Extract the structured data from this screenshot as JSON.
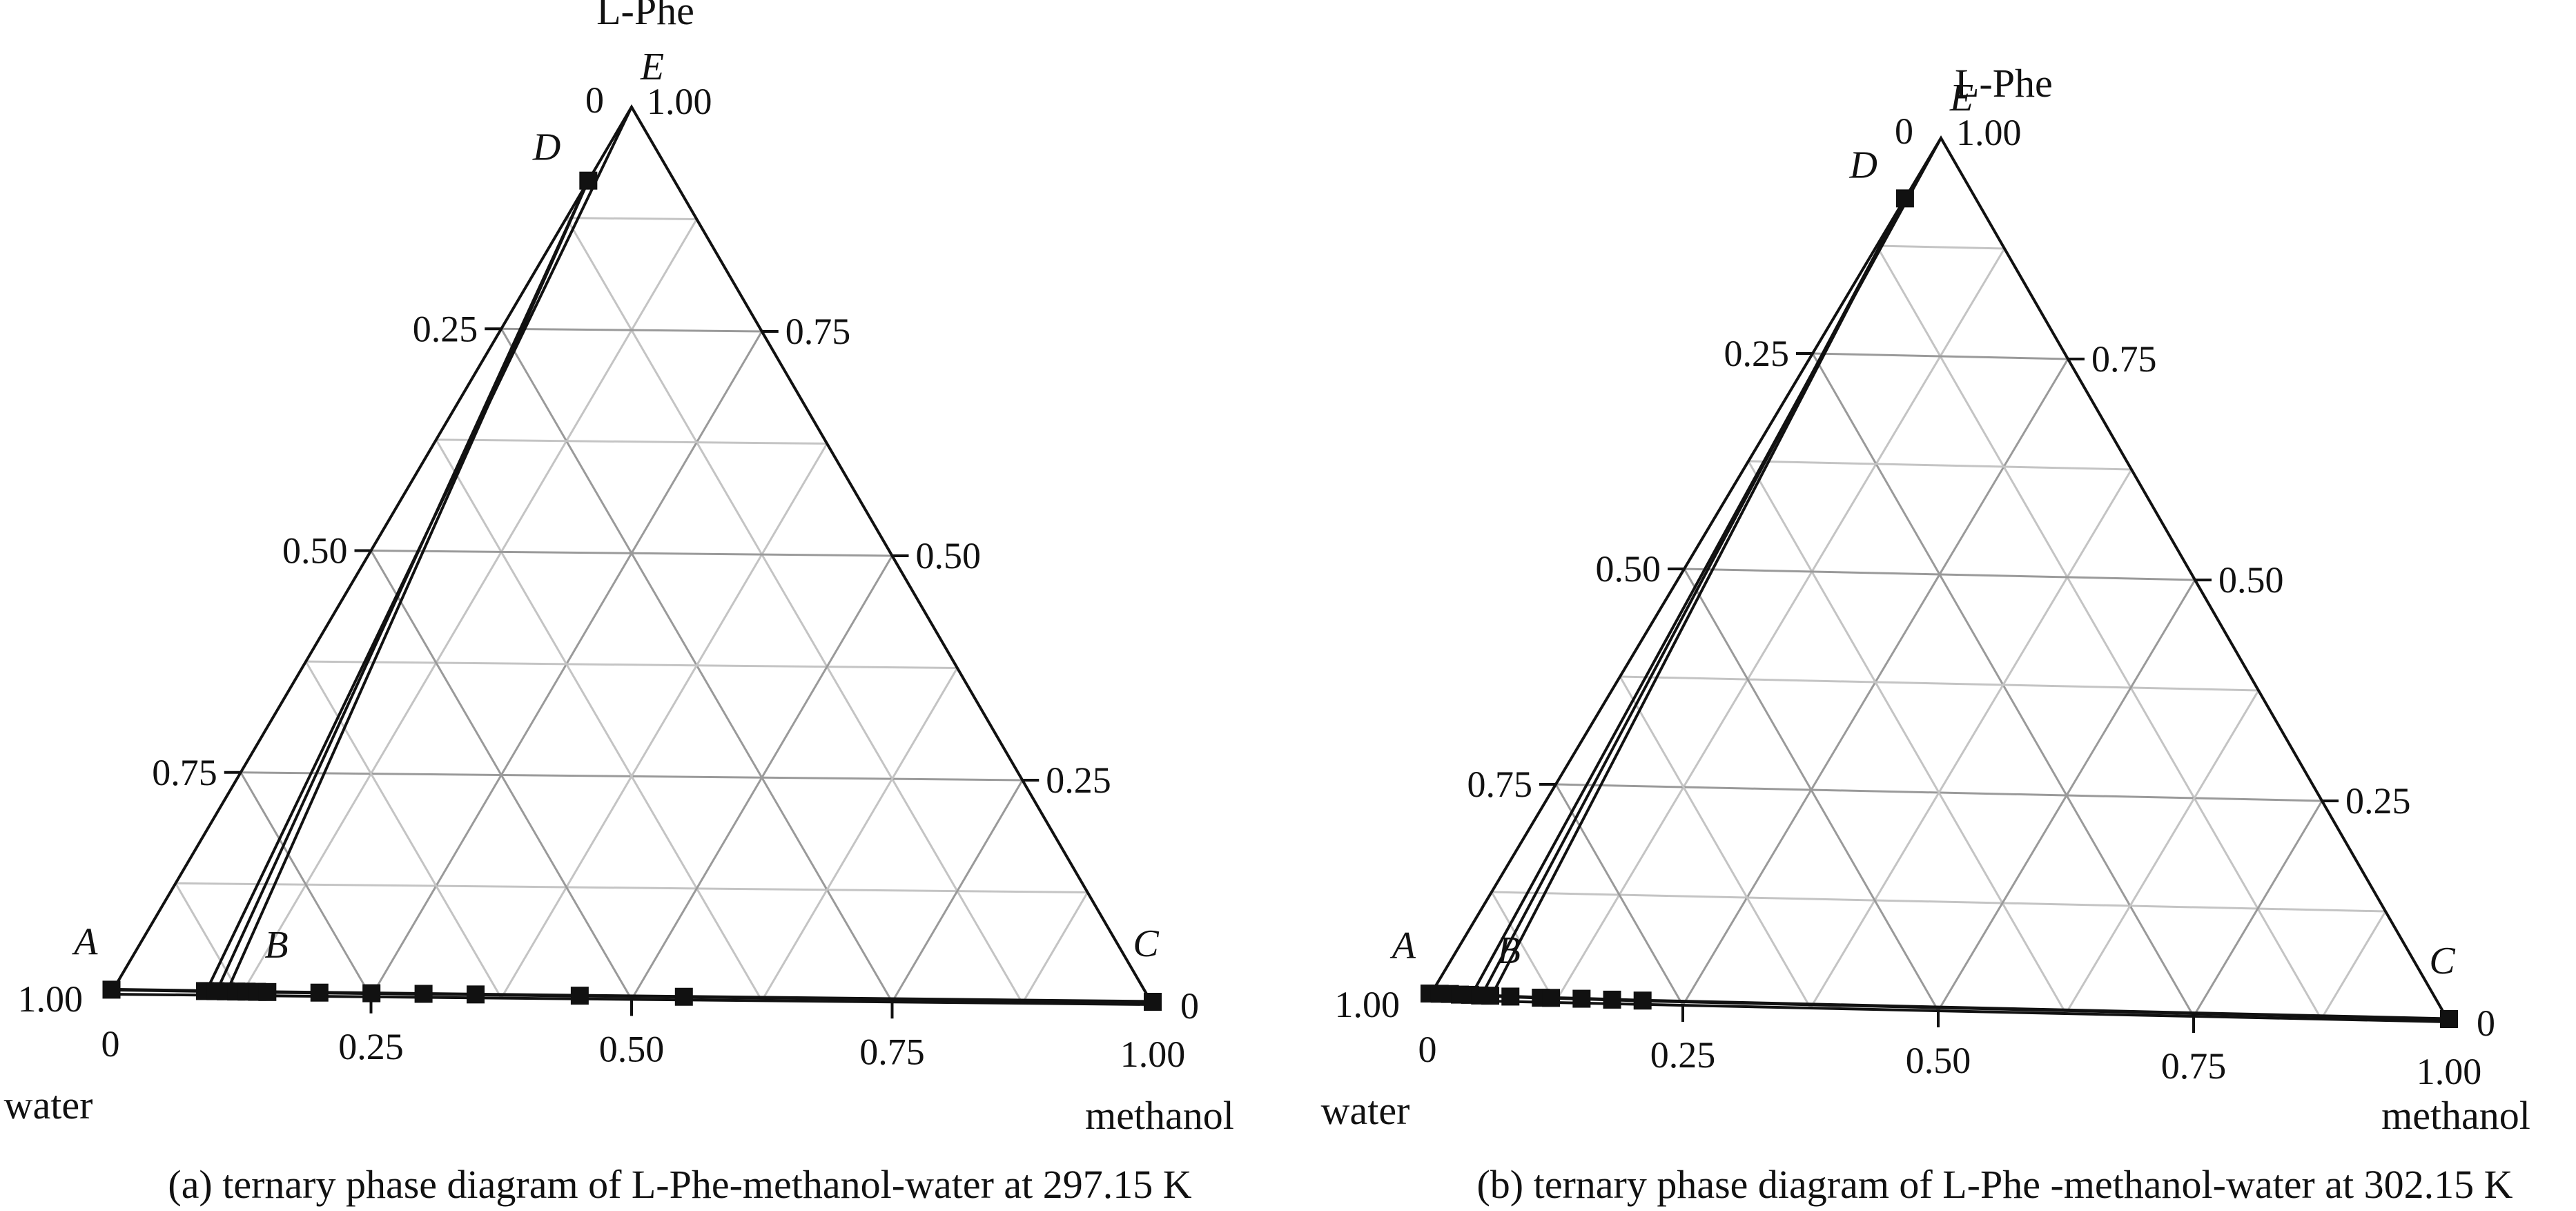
{
  "chart_data": [
    {
      "type": "ternary",
      "caption": "(a) ternary phase diagram of L-Phe-methanol-water at 297.15 K",
      "vertices": {
        "top": "L-Phe",
        "left": "water",
        "right": "methanol"
      },
      "grid": true,
      "ticks": {
        "left_edge": [
          "0",
          "0.25",
          "0.50",
          "0.75",
          "1.00"
        ],
        "right_edge": [
          "1.00",
          "0.75",
          "0.50",
          "0.25",
          "0"
        ],
        "bottom_edge": [
          "0",
          "0.25",
          "0.50",
          "0.75",
          "1.00"
        ]
      },
      "point_labels": [
        {
          "label": "E",
          "a": 1.0,
          "b": 0.0
        },
        {
          "label": "D",
          "a": 0.917,
          "b": 0.0
        },
        {
          "label": "A",
          "a": 0.002,
          "b": 0.0
        },
        {
          "label": "B",
          "a": 0.0,
          "b": 0.14
        },
        {
          "label": "C",
          "a": 0.0,
          "b": 1.0
        }
      ],
      "solubility_curve": [
        {
          "a": 0.002,
          "b": 0.0
        },
        {
          "a": 0.0015,
          "b": 0.09
        },
        {
          "a": 0.0015,
          "b": 0.1
        },
        {
          "a": 0.0014,
          "b": 0.11
        },
        {
          "a": 0.0013,
          "b": 0.12
        },
        {
          "a": 0.0013,
          "b": 0.13
        },
        {
          "a": 0.0012,
          "b": 0.14
        },
        {
          "a": 0.0011,
          "b": 0.15
        },
        {
          "a": 0.001,
          "b": 0.2
        },
        {
          "a": 0.0009,
          "b": 0.25
        },
        {
          "a": 0.0008,
          "b": 0.3
        },
        {
          "a": 0.0007,
          "b": 0.35
        },
        {
          "a": 0.0005,
          "b": 0.45
        },
        {
          "a": 0.0004,
          "b": 0.55
        },
        {
          "a": 0.0,
          "b": 1.0
        }
      ],
      "tie_lines": [
        {
          "from": {
            "a": 1.0,
            "b": 0.0
          },
          "to": {
            "a": 0.0015,
            "b": 0.09
          }
        },
        {
          "from": {
            "a": 0.917,
            "b": 0.0
          },
          "to": {
            "a": 0.0015,
            "b": 0.1
          }
        },
        {
          "from": {
            "a": 0.917,
            "b": 0.0
          },
          "to": {
            "a": 0.0015,
            "b": 0.11
          }
        }
      ]
    },
    {
      "type": "ternary",
      "caption": "(b) ternary phase diagram of L-Phe -methanol-water at 302.15 K",
      "vertices": {
        "top": "L-Phe",
        "left": "water",
        "right": "methanol"
      },
      "grid": true,
      "ticks": {
        "left_edge": [
          "0",
          "0.25",
          "0.50",
          "0.75",
          "1.00"
        ],
        "right_edge": [
          "1.00",
          "0.75",
          "0.50",
          "0.25",
          "0"
        ],
        "bottom_edge": [
          "0",
          "0.25",
          "0.50",
          "0.75",
          "1.00"
        ]
      },
      "point_labels": [
        {
          "label": "E",
          "a": 1.0,
          "b": 0.0
        },
        {
          "label": "D",
          "a": 0.93,
          "b": 0.0
        },
        {
          "label": "A",
          "a": 0.004,
          "b": 0.0
        },
        {
          "label": "B",
          "a": 0.0,
          "b": 0.06
        },
        {
          "label": "C",
          "a": 0.0,
          "b": 1.0
        }
      ],
      "solubility_curve": [
        {
          "a": 0.004,
          "b": 0.0
        },
        {
          "a": 0.004,
          "b": 0.01
        },
        {
          "a": 0.004,
          "b": 0.02
        },
        {
          "a": 0.0035,
          "b": 0.03
        },
        {
          "a": 0.0035,
          "b": 0.04
        },
        {
          "a": 0.003,
          "b": 0.05
        },
        {
          "a": 0.003,
          "b": 0.06
        },
        {
          "a": 0.0025,
          "b": 0.08
        },
        {
          "a": 0.002,
          "b": 0.11
        },
        {
          "a": 0.002,
          "b": 0.12
        },
        {
          "a": 0.0018,
          "b": 0.15
        },
        {
          "a": 0.0015,
          "b": 0.18
        },
        {
          "a": 0.0012,
          "b": 0.21
        },
        {
          "a": 0.0,
          "b": 1.0
        }
      ],
      "tie_lines": [
        {
          "from": {
            "a": 1.0,
            "b": 0.0
          },
          "to": {
            "a": 0.004,
            "b": 0.04
          }
        },
        {
          "from": {
            "a": 0.93,
            "b": 0.0
          },
          "to": {
            "a": 0.004,
            "b": 0.05
          }
        },
        {
          "from": {
            "a": 0.93,
            "b": 0.0
          },
          "to": {
            "a": 0.003,
            "b": 0.06
          }
        }
      ]
    }
  ]
}
